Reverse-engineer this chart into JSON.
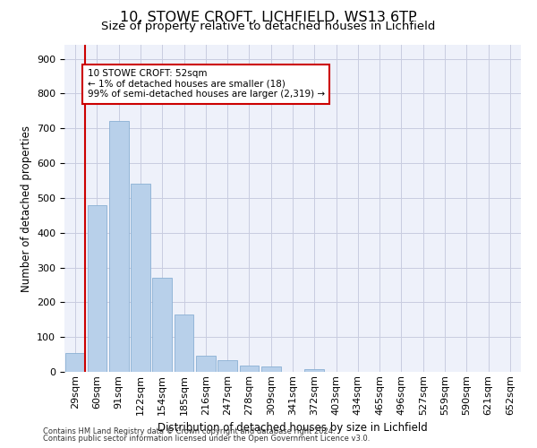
{
  "title1": "10, STOWE CROFT, LICHFIELD, WS13 6TP",
  "title2": "Size of property relative to detached houses in Lichfield",
  "xlabel": "Distribution of detached houses by size in Lichfield",
  "ylabel": "Number of detached properties",
  "categories": [
    "29sqm",
    "60sqm",
    "91sqm",
    "122sqm",
    "154sqm",
    "185sqm",
    "216sqm",
    "247sqm",
    "278sqm",
    "309sqm",
    "341sqm",
    "372sqm",
    "403sqm",
    "434sqm",
    "465sqm",
    "496sqm",
    "527sqm",
    "559sqm",
    "590sqm",
    "621sqm",
    "652sqm"
  ],
  "values": [
    55,
    480,
    720,
    540,
    270,
    165,
    47,
    33,
    18,
    15,
    0,
    8,
    0,
    0,
    0,
    0,
    0,
    0,
    0,
    0,
    0
  ],
  "bar_color": "#b8d0ea",
  "bar_edge_color": "#8ab0d4",
  "vline_color": "#cc0000",
  "annotation_text": "10 STOWE CROFT: 52sqm\n← 1% of detached houses are smaller (18)\n99% of semi-detached houses are larger (2,319) →",
  "annotation_box_edge": "#cc0000",
  "ylim": [
    0,
    940
  ],
  "yticks": [
    0,
    100,
    200,
    300,
    400,
    500,
    600,
    700,
    800,
    900
  ],
  "footer1": "Contains HM Land Registry data © Crown copyright and database right 2024.",
  "footer2": "Contains public sector information licensed under the Open Government Licence v3.0.",
  "bg_color": "#eef1fa",
  "grid_color": "#c8cce0",
  "title1_fontsize": 11.5,
  "title2_fontsize": 9.5,
  "axis_label_fontsize": 8.5,
  "tick_fontsize": 8,
  "annotation_fontsize": 7.5
}
